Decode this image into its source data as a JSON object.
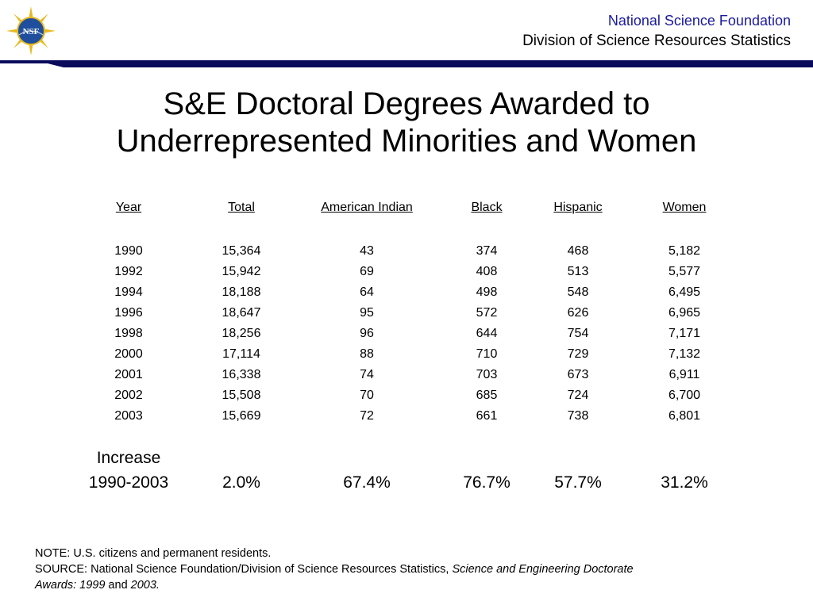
{
  "header": {
    "org_line1": "National Science Foundation",
    "org_line2": "Division of Science Resources Statistics",
    "logo_text": "NSF",
    "rule_color": "#0a0a5c",
    "accent_color": "#1a1a9c"
  },
  "title": {
    "line1": "S&E Doctoral Degrees Awarded to",
    "line2": "Underrepresented Minorities and Women"
  },
  "table": {
    "headers": [
      "Year",
      "Total",
      "American Indian",
      "Black",
      "Hispanic",
      "Women"
    ],
    "rows": [
      [
        "1990",
        "15,364",
        "43",
        "374",
        "468",
        "5,182"
      ],
      [
        "1992",
        "15,942",
        "69",
        "408",
        "513",
        "5,577"
      ],
      [
        "1994",
        "18,188",
        "64",
        "498",
        "548",
        "6,495"
      ],
      [
        "1996",
        "18,647",
        "95",
        "572",
        "626",
        "6,965"
      ],
      [
        "1998",
        "18,256",
        "96",
        "644",
        "754",
        "7,171"
      ],
      [
        "2000",
        "17,114",
        "88",
        "710",
        "729",
        "7,132"
      ],
      [
        "2001",
        "16,338",
        "74",
        "703",
        "673",
        "6,911"
      ],
      [
        "2002",
        "15,508",
        "70",
        "685",
        "724",
        "6,700"
      ],
      [
        "2003",
        "15,669",
        "72",
        "661",
        "738",
        "6,801"
      ]
    ],
    "increase_label": "Increase",
    "increase_period": "1990-2003",
    "increase_values": [
      "2.0%",
      "67.4%",
      "76.7%",
      "57.7%",
      "31.2%"
    ]
  },
  "notes": {
    "note": "NOTE:  U.S. citizens and permanent residents.",
    "source_prefix": "SOURCE:  National Science Foundation/Division of Science Resources Statistics, ",
    "source_title1": "Science and Engineering Doctorate",
    "source_title2": "Awards: 1999",
    "source_and": " and ",
    "source_title3": "2003."
  }
}
